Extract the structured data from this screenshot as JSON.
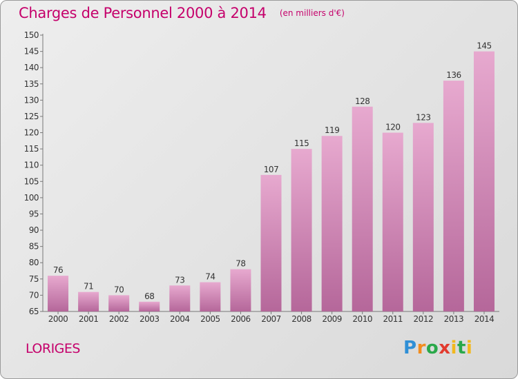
{
  "header": {
    "title": "Charges de Personnel 2000 à 2014",
    "unit": "(en milliers d'€)"
  },
  "footer": {
    "commune": "LORIGES",
    "logo_letters": [
      "P",
      "r",
      "o",
      "x",
      "i",
      "t",
      "i"
    ]
  },
  "colors": {
    "title": "#c5006b",
    "bar_top": "#e7a9cf",
    "bar_bottom": "#b5679a",
    "background": "#e4e4e4"
  },
  "chart_data": {
    "type": "bar",
    "title": "Charges de Personnel 2000 à 2014",
    "subtitle": "(en milliers d'€)",
    "categories": [
      "2000",
      "2001",
      "2002",
      "2003",
      "2004",
      "2005",
      "2006",
      "2007",
      "2008",
      "2009",
      "2010",
      "2011",
      "2012",
      "2013",
      "2014"
    ],
    "values": [
      76,
      71,
      70,
      68,
      73,
      74,
      78,
      107,
      115,
      119,
      128,
      120,
      123,
      136,
      145
    ],
    "ylim": [
      65,
      150
    ],
    "yticks": [
      65,
      70,
      75,
      80,
      85,
      90,
      95,
      100,
      105,
      110,
      115,
      120,
      125,
      130,
      135,
      140,
      145,
      150
    ],
    "grid": false,
    "data_labels": true
  }
}
